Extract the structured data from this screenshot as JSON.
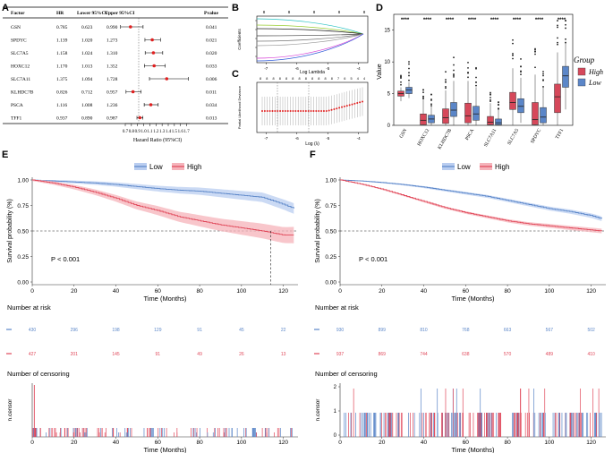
{
  "panels": {
    "A": "A",
    "B": "B",
    "C": "C",
    "D": "D",
    "E": "E",
    "F": "F"
  },
  "forest": {
    "headers": {
      "factor": "Factor",
      "hr": "HR",
      "lower": "Lower 95%CI",
      "upper": "Upper 95%CI",
      "pvalue": "Pvalue"
    },
    "rows": [
      {
        "factor": "GSN",
        "hr": "0.785",
        "lower": "0.623",
        "upper": "0.990",
        "pvalue": "0.041"
      },
      {
        "factor": "SPDYC",
        "hr": "1.139",
        "lower": "1.020",
        "upper": "1.273",
        "pvalue": "0.021"
      },
      {
        "factor": "SLC7A5",
        "hr": "1.158",
        "lower": "1.024",
        "upper": "1.310",
        "pvalue": "0.020"
      },
      {
        "factor": "HOXC12",
        "hr": "1.170",
        "lower": "1.013",
        "upper": "1.352",
        "pvalue": "0.033"
      },
      {
        "factor": "SLC7A11",
        "hr": "1.375",
        "lower": "1.094",
        "upper": "1.728",
        "pvalue": "0.006"
      },
      {
        "factor": "KLHDC7B",
        "hr": "0.826",
        "lower": "0.712",
        "upper": "0.957",
        "pvalue": "0.011"
      },
      {
        "factor": "PSCA",
        "hr": "1.116",
        "lower": "1.008",
        "upper": "1.236",
        "pvalue": "0.034"
      },
      {
        "factor": "TFF1",
        "hr": "0.937",
        "lower": "0.890",
        "upper": "0.987",
        "pvalue": "0.013"
      }
    ],
    "xticks": [
      "0.7",
      "0.8",
      "0.9",
      "1.0",
      "1.1",
      "1.2",
      "1.3",
      "1.4",
      "1.5",
      "1.6",
      "1.7"
    ],
    "xlabel": "Hazard Ratio (95%CI)"
  },
  "lasso_coef": {
    "xlabel": "Log Lambda",
    "ylabel": "Coefficients",
    "xticks": [
      "-7",
      "-6",
      "-5",
      "-4"
    ],
    "top_ticks": [
      "8",
      "8",
      "8",
      "8",
      "8"
    ],
    "colors": [
      "#2ac2c2",
      "#9acd32",
      "#222222",
      "#444444",
      "#777777",
      "#999999",
      "#d63fd6",
      "#2f5bd8"
    ]
  },
  "lasso_cv": {
    "xlabel": "Log (λ)",
    "ylabel": "Partial Likelihood Deviance",
    "xticks": [
      "-7",
      "-6",
      "-5",
      "-4"
    ],
    "top_ticks": [
      "8",
      "8",
      "8",
      "8",
      "8",
      "8",
      "8",
      "8",
      "8",
      "8",
      "8",
      "8",
      "7",
      "6",
      "5",
      "4",
      "4"
    ]
  },
  "boxplot": {
    "ylabel": "Value",
    "yticks": [
      "0",
      "5",
      "10",
      "15"
    ],
    "genes": [
      "GSN",
      "HOXC12",
      "KLHDC7B",
      "PSCA",
      "SLC7A11",
      "SLC7A5",
      "SPDYC",
      "TFF1"
    ],
    "sig": "****",
    "legend": {
      "title": "Group",
      "high": "High",
      "low": "Low"
    },
    "colors": {
      "high": "#d6485a",
      "low": "#5b86c8"
    }
  },
  "chart_data": [
    {
      "type": "line",
      "title": "E",
      "xlabel": "Time (Months)",
      "ylabel": "Survival probability (%)",
      "ylim": [
        0,
        1
      ],
      "xlim": [
        0,
        125
      ],
      "x": [
        0,
        10,
        20,
        30,
        40,
        50,
        60,
        70,
        80,
        90,
        100,
        110,
        120,
        125
      ],
      "series": [
        {
          "name": "Low",
          "values": [
            1.0,
            0.99,
            0.98,
            0.97,
            0.955,
            0.935,
            0.915,
            0.9,
            0.89,
            0.87,
            0.85,
            0.83,
            0.76,
            0.72
          ]
        },
        {
          "name": "High",
          "values": [
            1.0,
            0.97,
            0.93,
            0.88,
            0.82,
            0.75,
            0.7,
            0.64,
            0.6,
            0.56,
            0.53,
            0.5,
            0.46,
            0.46
          ]
        }
      ],
      "pvalue": "P < 0.001",
      "legend": [
        "Low",
        "High"
      ],
      "yticks": [
        "0.00",
        "0.25",
        "0.50",
        "0.75",
        "1.00"
      ],
      "xticks": [
        "0",
        "20",
        "40",
        "60",
        "80",
        "100",
        "120"
      ],
      "risk_title": "Number at risk",
      "risk_low": [
        "430",
        "296",
        "198",
        "129",
        "91",
        "45",
        "22"
      ],
      "risk_high": [
        "427",
        "201",
        "145",
        "91",
        "49",
        "26",
        "13"
      ],
      "censor_title": "Number of censoring",
      "censor_ylabel": "n.censor"
    },
    {
      "type": "line",
      "title": "F",
      "xlabel": "Time (Months)",
      "ylabel": "Survival probability (%)",
      "ylim": [
        0,
        1
      ],
      "xlim": [
        0,
        125
      ],
      "x": [
        0,
        10,
        20,
        30,
        40,
        50,
        60,
        70,
        80,
        90,
        100,
        110,
        120,
        125
      ],
      "series": [
        {
          "name": "Low",
          "values": [
            1.0,
            0.99,
            0.975,
            0.955,
            0.93,
            0.9,
            0.87,
            0.84,
            0.8,
            0.76,
            0.72,
            0.69,
            0.65,
            0.62
          ]
        },
        {
          "name": "High",
          "values": [
            1.0,
            0.96,
            0.91,
            0.85,
            0.79,
            0.73,
            0.68,
            0.64,
            0.6,
            0.57,
            0.55,
            0.53,
            0.51,
            0.5
          ]
        }
      ],
      "pvalue": "P < 0.001",
      "legend": [
        "Low",
        "High"
      ],
      "yticks": [
        "0.00",
        "0.25",
        "0.50",
        "0.75",
        "1.00"
      ],
      "xticks": [
        "0",
        "20",
        "40",
        "60",
        "80",
        "100",
        "120"
      ],
      "risk_title": "Number at risk",
      "risk_low": [
        "930",
        "899",
        "810",
        "768",
        "663",
        "567",
        "502"
      ],
      "risk_high": [
        "937",
        "869",
        "744",
        "638",
        "570",
        "489",
        "410"
      ],
      "censor_title": "Number of censoring",
      "censor_ylabel": "n.censor",
      "censor_yticks": [
        "0",
        "1",
        "2"
      ]
    }
  ],
  "colors": {
    "low": "#5b86c8",
    "high": "#e0485a",
    "low_band": "#b9cdf0",
    "high_band": "#f5b3ba"
  }
}
